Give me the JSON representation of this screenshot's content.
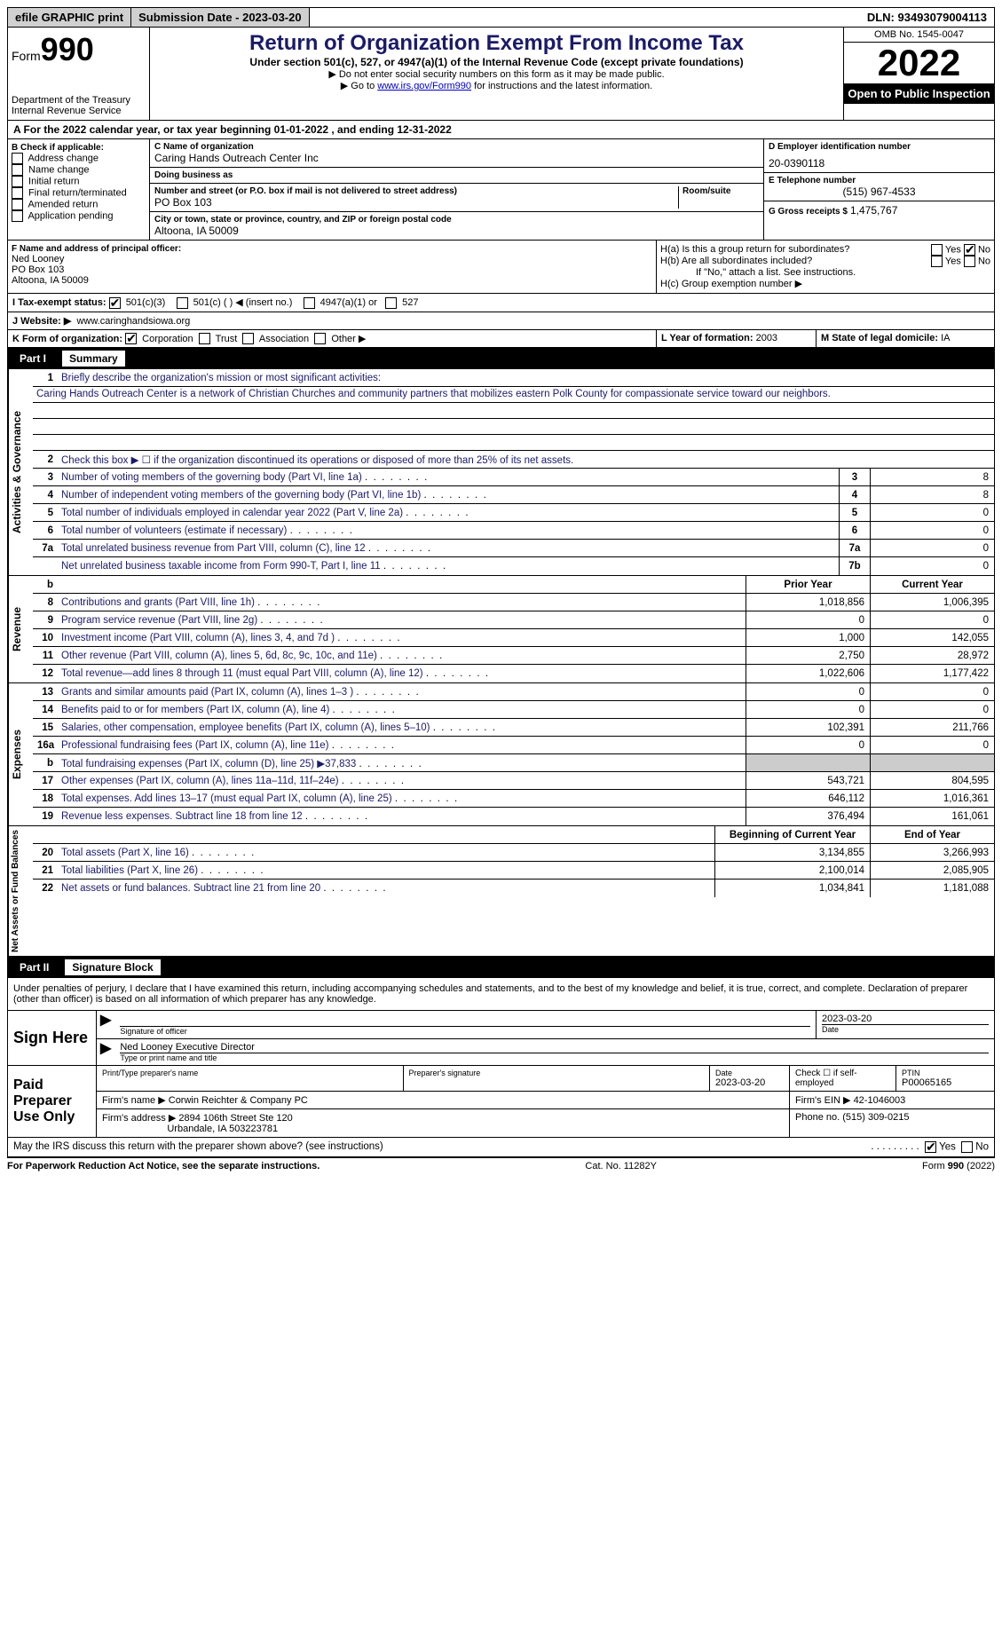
{
  "topbar": {
    "efile": "efile GRAPHIC print",
    "submission": "Submission Date - 2023-03-20",
    "dln": "DLN: 93493079004113"
  },
  "header": {
    "form_label": "Form",
    "form_num": "990",
    "dept": "Department of the Treasury Internal Revenue Service",
    "title": "Return of Organization Exempt From Income Tax",
    "sub": "Under section 501(c), 527, or 4947(a)(1) of the Internal Revenue Code (except private foundations)",
    "note1": "▶ Do not enter social security numbers on this form as it may be made public.",
    "note2_pre": "▶ Go to ",
    "note2_link": "www.irs.gov/Form990",
    "note2_post": " for instructions and the latest information.",
    "omb": "OMB No. 1545-0047",
    "year": "2022",
    "inspect": "Open to Public Inspection"
  },
  "lineA": "A For the 2022 calendar year, or tax year beginning 01-01-2022   , and ending 12-31-2022",
  "boxB": {
    "label": "B Check if applicable:",
    "opts": [
      "Address change",
      "Name change",
      "Initial return",
      "Final return/terminated",
      "Amended return",
      "Application pending"
    ]
  },
  "boxC": {
    "name_lbl": "C Name of organization",
    "name": "Caring Hands Outreach Center Inc",
    "dba_lbl": "Doing business as",
    "dba": "",
    "addr_lbl": "Number and street (or P.O. box if mail is not delivered to street address)",
    "room_lbl": "Room/suite",
    "addr": "PO Box 103",
    "city_lbl": "City or town, state or province, country, and ZIP or foreign postal code",
    "city": "Altoona, IA  50009"
  },
  "boxD": {
    "lbl": "D Employer identification number",
    "val": "20-0390118"
  },
  "boxE": {
    "lbl": "E Telephone number",
    "val": "(515) 967-4533"
  },
  "boxG": {
    "lbl": "G Gross receipts $",
    "val": "1,475,767"
  },
  "boxF": {
    "lbl": "F  Name and address of principal officer:",
    "name": "Ned Looney",
    "addr1": "PO Box 103",
    "addr2": "Altoona, IA  50009"
  },
  "boxH": {
    "a": "H(a)  Is this a group return for subordinates?",
    "b": "H(b)  Are all subordinates included?",
    "bnote": "If \"No,\" attach a list. See instructions.",
    "c": "H(c)  Group exemption number ▶"
  },
  "boxI": {
    "lbl": "I   Tax-exempt status:",
    "o1": "501(c)(3)",
    "o2": "501(c) (  ) ◀ (insert no.)",
    "o3": "4947(a)(1) or",
    "o4": "527"
  },
  "boxJ": {
    "lbl": "J   Website: ▶",
    "val": "www.caringhandsiowa.org"
  },
  "boxK": {
    "lbl": "K Form of organization:",
    "o1": "Corporation",
    "o2": "Trust",
    "o3": "Association",
    "o4": "Other ▶"
  },
  "boxL": {
    "lbl": "L Year of formation:",
    "val": "2003"
  },
  "boxM": {
    "lbl": "M State of legal domicile:",
    "val": "IA"
  },
  "part1": {
    "num": "Part I",
    "title": "Summary"
  },
  "summary": {
    "q1": "Briefly describe the organization's mission or most significant activities:",
    "mission": "Caring Hands Outreach Center is a network of Christian Churches and community partners that mobilizes eastern Polk County for compassionate service toward our neighbors.",
    "q2": "Check this box ▶ ☐  if the organization discontinued its operations or disposed of more than 25% of its net assets.",
    "rows_gov": [
      {
        "n": "3",
        "d": "Number of voting members of the governing body (Part VI, line 1a)",
        "box": "3",
        "v": "8"
      },
      {
        "n": "4",
        "d": "Number of independent voting members of the governing body (Part VI, line 1b)",
        "box": "4",
        "v": "8"
      },
      {
        "n": "5",
        "d": "Total number of individuals employed in calendar year 2022 (Part V, line 2a)",
        "box": "5",
        "v": "0"
      },
      {
        "n": "6",
        "d": "Total number of volunteers (estimate if necessary)",
        "box": "6",
        "v": "0"
      },
      {
        "n": "7a",
        "d": "Total unrelated business revenue from Part VIII, column (C), line 12",
        "box": "7a",
        "v": "0"
      },
      {
        "n": "",
        "d": "Net unrelated business taxable income from Form 990-T, Part I, line 11",
        "box": "7b",
        "v": "0"
      }
    ],
    "col_hdr": {
      "py": "Prior Year",
      "cy": "Current Year"
    },
    "rows_rev": [
      {
        "n": "8",
        "d": "Contributions and grants (Part VIII, line 1h)",
        "py": "1,018,856",
        "cy": "1,006,395"
      },
      {
        "n": "9",
        "d": "Program service revenue (Part VIII, line 2g)",
        "py": "0",
        "cy": "0"
      },
      {
        "n": "10",
        "d": "Investment income (Part VIII, column (A), lines 3, 4, and 7d )",
        "py": "1,000",
        "cy": "142,055"
      },
      {
        "n": "11",
        "d": "Other revenue (Part VIII, column (A), lines 5, 6d, 8c, 9c, 10c, and 11e)",
        "py": "2,750",
        "cy": "28,972"
      },
      {
        "n": "12",
        "d": "Total revenue—add lines 8 through 11 (must equal Part VIII, column (A), line 12)",
        "py": "1,022,606",
        "cy": "1,177,422"
      }
    ],
    "rows_exp": [
      {
        "n": "13",
        "d": "Grants and similar amounts paid (Part IX, column (A), lines 1–3 )",
        "py": "0",
        "cy": "0"
      },
      {
        "n": "14",
        "d": "Benefits paid to or for members (Part IX, column (A), line 4)",
        "py": "0",
        "cy": "0"
      },
      {
        "n": "15",
        "d": "Salaries, other compensation, employee benefits (Part IX, column (A), lines 5–10)",
        "py": "102,391",
        "cy": "211,766"
      },
      {
        "n": "16a",
        "d": "Professional fundraising fees (Part IX, column (A), line 11e)",
        "py": "0",
        "cy": "0"
      },
      {
        "n": "b",
        "d": "Total fundraising expenses (Part IX, column (D), line 25) ▶37,833",
        "py": "shade",
        "cy": "shade"
      },
      {
        "n": "17",
        "d": "Other expenses (Part IX, column (A), lines 11a–11d, 11f–24e)",
        "py": "543,721",
        "cy": "804,595"
      },
      {
        "n": "18",
        "d": "Total expenses. Add lines 13–17 (must equal Part IX, column (A), line 25)",
        "py": "646,112",
        "cy": "1,016,361"
      },
      {
        "n": "19",
        "d": "Revenue less expenses. Subtract line 18 from line 12",
        "py": "376,494",
        "cy": "161,061"
      }
    ],
    "col_hdr2": {
      "py": "Beginning of Current Year",
      "cy": "End of Year"
    },
    "rows_net": [
      {
        "n": "20",
        "d": "Total assets (Part X, line 16)",
        "py": "3,134,855",
        "cy": "3,266,993"
      },
      {
        "n": "21",
        "d": "Total liabilities (Part X, line 26)",
        "py": "2,100,014",
        "cy": "2,085,905"
      },
      {
        "n": "22",
        "d": "Net assets or fund balances. Subtract line 21 from line 20",
        "py": "1,034,841",
        "cy": "1,181,088"
      }
    ],
    "side_gov": "Activities & Governance",
    "side_rev": "Revenue",
    "side_exp": "Expenses",
    "side_net": "Net Assets or Fund Balances"
  },
  "part2": {
    "num": "Part II",
    "title": "Signature Block"
  },
  "sig": {
    "decl": "Under penalties of perjury, I declare that I have examined this return, including accompanying schedules and statements, and to the best of my knowledge and belief, it is true, correct, and complete. Declaration of preparer (other than officer) is based on all information of which preparer has any knowledge.",
    "sign_here": "Sign Here",
    "sig_officer": "Signature of officer",
    "sig_date": "2023-03-20",
    "date_lbl": "Date",
    "name_title": "Ned Looney  Executive Director",
    "name_lbl": "Type or print name and title",
    "paid": "Paid Preparer Use Only",
    "prep_name_lbl": "Print/Type preparer's name",
    "prep_sig_lbl": "Preparer's signature",
    "prep_date_lbl": "Date",
    "prep_date": "2023-03-20",
    "self_emp": "Check ☐ if self-employed",
    "ptin_lbl": "PTIN",
    "ptin": "P00065165",
    "firm_name_lbl": "Firm's name    ▶",
    "firm_name": "Corwin Reichter & Company PC",
    "firm_ein_lbl": "Firm's EIN ▶",
    "firm_ein": "42-1046003",
    "firm_addr_lbl": "Firm's address ▶",
    "firm_addr1": "2894 106th Street Ste 120",
    "firm_addr2": "Urbandale, IA  503223781",
    "phone_lbl": "Phone no.",
    "phone": "(515) 309-0215"
  },
  "may": "May the IRS discuss this return with the preparer shown above? (see instructions)",
  "footer": {
    "left": "For Paperwork Reduction Act Notice, see the separate instructions.",
    "mid": "Cat. No. 11282Y",
    "right": "Form 990 (2022)"
  },
  "yn": {
    "yes": "Yes",
    "no": "No"
  }
}
